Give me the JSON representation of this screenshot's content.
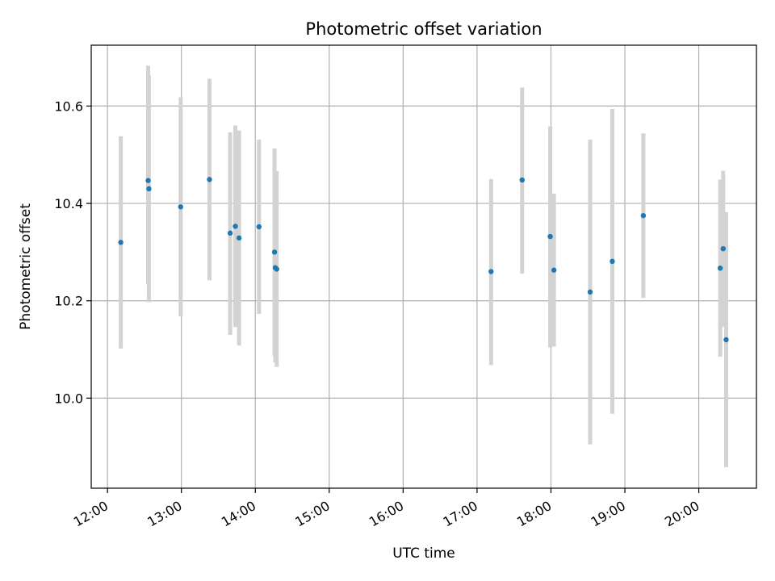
{
  "chart_data": {
    "type": "scatter",
    "title": "Photometric offset variation",
    "xlabel": "UTC time",
    "ylabel": "Photometric offset",
    "x_unit": "hours UTC",
    "xlim": [
      11.78,
      20.78
    ],
    "ylim": [
      9.815,
      10.725
    ],
    "x_ticks": [
      {
        "value": 12,
        "label": "12:00"
      },
      {
        "value": 13,
        "label": "13:00"
      },
      {
        "value": 14,
        "label": "14:00"
      },
      {
        "value": 15,
        "label": "15:00"
      },
      {
        "value": 16,
        "label": "16:00"
      },
      {
        "value": 17,
        "label": "17:00"
      },
      {
        "value": 18,
        "label": "18:00"
      },
      {
        "value": 19,
        "label": "19:00"
      },
      {
        "value": 20,
        "label": "20:00"
      }
    ],
    "y_ticks": [
      {
        "value": 10.0,
        "label": "10.0"
      },
      {
        "value": 10.2,
        "label": "10.2"
      },
      {
        "value": 10.4,
        "label": "10.4"
      },
      {
        "value": 10.6,
        "label": "10.6"
      }
    ],
    "grid": true,
    "point_color": "#1f77b4",
    "errorbar_color": "#d3d3d3",
    "points": [
      {
        "x": 12.18,
        "y": 10.32,
        "ymin": 10.102,
        "ymax": 10.538
      },
      {
        "x": 12.55,
        "y": 10.447,
        "ymin": 10.235,
        "ymax": 10.683
      },
      {
        "x": 12.56,
        "y": 10.43,
        "ymin": 10.197,
        "ymax": 10.663
      },
      {
        "x": 12.99,
        "y": 10.393,
        "ymin": 10.168,
        "ymax": 10.618
      },
      {
        "x": 13.38,
        "y": 10.449,
        "ymin": 10.242,
        "ymax": 10.656
      },
      {
        "x": 13.66,
        "y": 10.339,
        "ymin": 10.13,
        "ymax": 10.546
      },
      {
        "x": 13.73,
        "y": 10.353,
        "ymin": 10.146,
        "ymax": 10.56
      },
      {
        "x": 13.78,
        "y": 10.329,
        "ymin": 10.108,
        "ymax": 10.55
      },
      {
        "x": 14.05,
        "y": 10.352,
        "ymin": 10.173,
        "ymax": 10.531
      },
      {
        "x": 14.26,
        "y": 10.3,
        "ymin": 10.087,
        "ymax": 10.513
      },
      {
        "x": 14.27,
        "y": 10.268,
        "ymin": 10.073,
        "ymax": 10.463
      },
      {
        "x": 14.29,
        "y": 10.265,
        "ymin": 10.064,
        "ymax": 10.466
      },
      {
        "x": 17.19,
        "y": 10.26,
        "ymin": 10.068,
        "ymax": 10.45
      },
      {
        "x": 17.61,
        "y": 10.448,
        "ymin": 10.256,
        "ymax": 10.638
      },
      {
        "x": 17.99,
        "y": 10.332,
        "ymin": 10.104,
        "ymax": 10.558
      },
      {
        "x": 18.04,
        "y": 10.263,
        "ymin": 10.106,
        "ymax": 10.42
      },
      {
        "x": 18.53,
        "y": 10.218,
        "ymin": 9.905,
        "ymax": 10.531
      },
      {
        "x": 18.83,
        "y": 10.281,
        "ymin": 9.968,
        "ymax": 10.594
      },
      {
        "x": 19.25,
        "y": 10.375,
        "ymin": 10.206,
        "ymax": 10.544
      },
      {
        "x": 20.29,
        "y": 10.267,
        "ymin": 10.085,
        "ymax": 10.449
      },
      {
        "x": 20.33,
        "y": 10.307,
        "ymin": 10.147,
        "ymax": 10.467
      },
      {
        "x": 20.37,
        "y": 10.12,
        "ymin": 9.858,
        "ymax": 10.382
      }
    ]
  }
}
